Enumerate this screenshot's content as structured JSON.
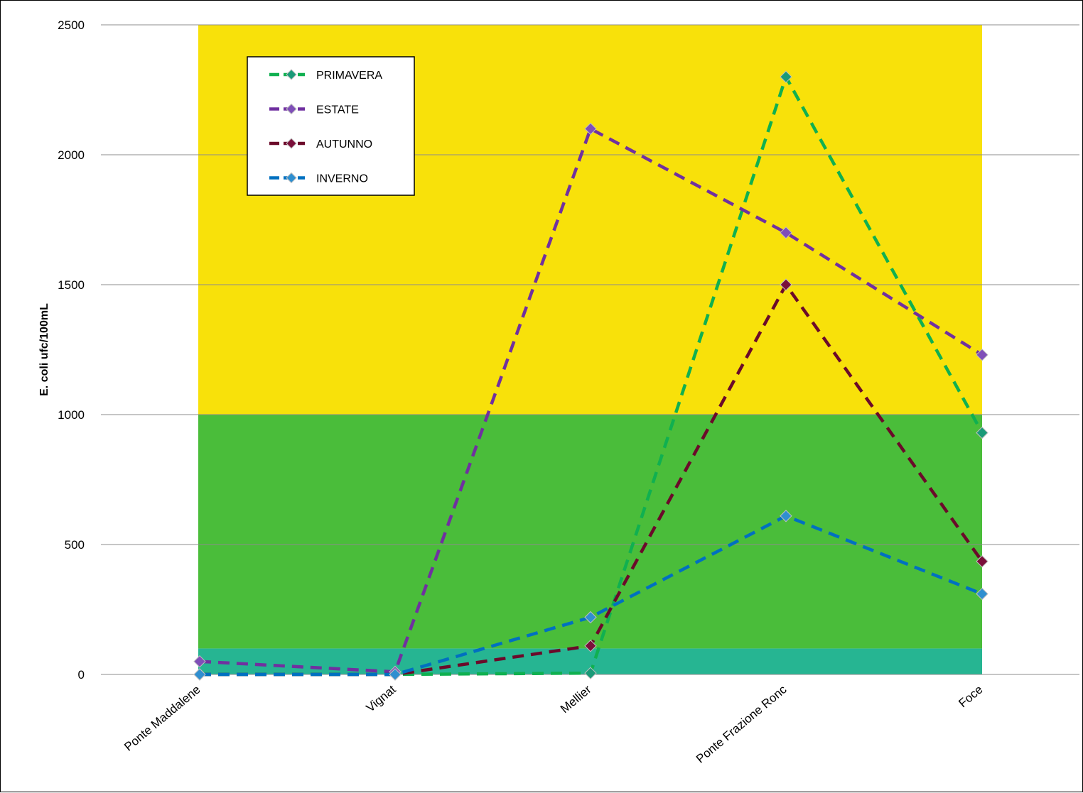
{
  "chart_data": {
    "type": "line",
    "title": "",
    "xlabel": "",
    "ylabel": "E. coli ufc/100mL",
    "ylim": [
      0,
      2500
    ],
    "yticks": [
      0,
      500,
      1000,
      1500,
      2000,
      2500
    ],
    "categories": [
      "Ponte Maddalene",
      "Vignat",
      "Mellier",
      "Ponte Frazione Ronc",
      "Foce"
    ],
    "grid": true,
    "legend_position": "top-left",
    "background_bands": [
      {
        "from": 0,
        "to": 100,
        "color": "#26B592"
      },
      {
        "from": 100,
        "to": 1000,
        "color": "#4ABD3A"
      },
      {
        "from": 1000,
        "to": 2500,
        "color": "#F8E10A"
      }
    ],
    "series": [
      {
        "name": "PRIMAVERA",
        "values": [
          0,
          0,
          5,
          2300,
          930
        ],
        "color": "#10B050",
        "marker": "#1A9A78"
      },
      {
        "name": "ESTATE",
        "values": [
          50,
          10,
          2100,
          1700,
          1230
        ],
        "color": "#7030A0",
        "marker": "#7F4FB8"
      },
      {
        "name": "AUTUNNO",
        "values": [
          0,
          0,
          110,
          1500,
          435
        ],
        "color": "#6B0A2A",
        "marker": "#7A0F3A"
      },
      {
        "name": "INVERNO",
        "values": [
          0,
          0,
          220,
          610,
          310
        ],
        "color": "#0070C0",
        "marker": "#2F8FD0"
      }
    ]
  }
}
